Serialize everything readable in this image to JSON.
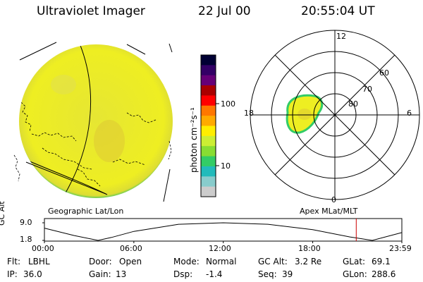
{
  "header": {
    "instrument": "Ultraviolet Imager",
    "date": "22 Jul 00",
    "time": "20:55:04 UT"
  },
  "colorbar": {
    "unit_label": "photon cm⁻²s⁻¹",
    "tick_labels": [
      "100",
      "10"
    ],
    "scale": "log",
    "colors": [
      "#000033",
      "#330066",
      "#660077",
      "#aa0000",
      "#ff0000",
      "#ff7700",
      "#ffaa00",
      "#ffee00",
      "#ccee33",
      "#88dd33",
      "#33cc66",
      "#22bbbb",
      "#88cccc",
      "#cccccc"
    ]
  },
  "left_map": {
    "caption": "Geographic Lat/Lon",
    "colors": {
      "disk": "#eeee22",
      "limb": "#33cc66"
    }
  },
  "polar_plot": {
    "caption": "Apex MLat/MLT",
    "mlt_labels": [
      "12",
      "18",
      "6",
      "0"
    ],
    "lat_labels": [
      "60",
      "70",
      "80"
    ]
  },
  "altitude_plot": {
    "ylabel": "GC Alt",
    "yticks": [
      "9.0",
      "1.8"
    ],
    "xticks": [
      "00:00",
      "06:00",
      "12:00",
      "18:00",
      "23:59"
    ],
    "marker_color": "#cc0000"
  },
  "chart_data": {
    "type": "line",
    "ylabel": "GC Alt",
    "xlabel": "",
    "x_hours": [
      0,
      2,
      3.6,
      4.5,
      6,
      9,
      12,
      15,
      18,
      20.5,
      22,
      23.98
    ],
    "y": [
      6.8,
      3.8,
      1.8,
      3.0,
      5.5,
      8.4,
      9.0,
      8.4,
      6.2,
      3.2,
      1.8,
      5.0
    ],
    "ylim": [
      1.8,
      9.0
    ],
    "xlim": [
      0,
      23.98
    ],
    "current_time_hours": 20.92
  },
  "info": {
    "filter": {
      "label": "Flt:",
      "value": "LBHL"
    },
    "ip": {
      "label": "IP:",
      "value": "36.0"
    },
    "door": {
      "label": "Door:",
      "value": "Open"
    },
    "gain": {
      "label": "Gain:",
      "value": "13"
    },
    "mode": {
      "label": "Mode:",
      "value": "Normal"
    },
    "dsp": {
      "label": "Dsp:",
      "value": "-1.4"
    },
    "gcalt": {
      "label": "GC Alt:",
      "value": "3.2 Re"
    },
    "seq": {
      "label": "Seq:",
      "value": "39"
    },
    "glat": {
      "label": "GLat:",
      "value": "69.1"
    },
    "glon": {
      "label": "GLon:",
      "value": "288.6"
    }
  }
}
